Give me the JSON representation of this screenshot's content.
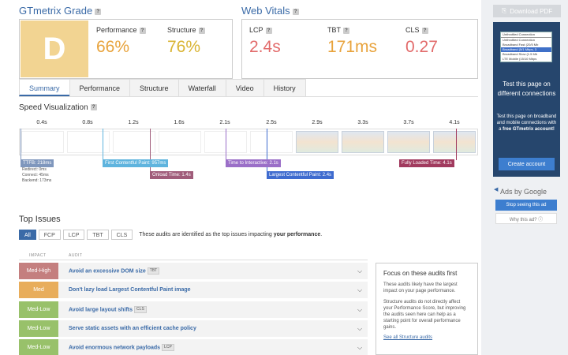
{
  "grade": {
    "title": "GTmetrix Grade",
    "letter": "D",
    "performance_label": "Performance",
    "performance_value": "66%",
    "structure_label": "Structure",
    "structure_value": "76%"
  },
  "vitals": {
    "title": "Web Vitals",
    "lcp_label": "LCP",
    "lcp_value": "2.4s",
    "tbt_label": "TBT",
    "tbt_value": "171ms",
    "cls_label": "CLS",
    "cls_value": "0.27"
  },
  "help_glyph": "?",
  "tabs": [
    "Summary",
    "Performance",
    "Structure",
    "Waterfall",
    "Video",
    "History"
  ],
  "speed": {
    "title": "Speed Visualization",
    "ticks": [
      "0.4s",
      "0.8s",
      "1.2s",
      "1.6s",
      "2.1s",
      "2.5s",
      "2.9s",
      "3.3s",
      "3.7s",
      "4.1s"
    ],
    "markers": {
      "ttfb": "TTFB: 218ms",
      "fcp": "First Contentful Paint: 957ms",
      "onload": "Onload Time: 1.4s",
      "tti": "Time to Interactive: 2.1s",
      "lcp": "Largest Contentful Paint: 2.4s",
      "flt": "Fully Loaded Time: 4.1s"
    },
    "ttfb_details": [
      "Redirect: 0ms",
      "Connect: 45ms",
      "Backend: 173ms"
    ]
  },
  "issues": {
    "title": "Top Issues",
    "filters": [
      "All",
      "FCP",
      "LCP",
      "TBT",
      "CLS"
    ],
    "note_prefix": "These audits are identified as the top issues impacting",
    "note_bold": "your performance",
    "note_suffix": ".",
    "col_impact": "IMPACT",
    "col_audit": "AUDIT",
    "rows": [
      {
        "impact": "Med-High",
        "color": "#c47f7f",
        "audit": "Avoid an excessive DOM size",
        "tag": "TBT"
      },
      {
        "impact": "Med",
        "color": "#e8ad5b",
        "audit": "Don't lazy load Largest Contentful Paint image",
        "tag": ""
      },
      {
        "impact": "Med-Low",
        "color": "#98c16a",
        "audit": "Avoid large layout shifts",
        "tag": "CLS"
      },
      {
        "impact": "Med-Low",
        "color": "#98c16a",
        "audit": "Serve static assets with an efficient cache policy",
        "tag": ""
      },
      {
        "impact": "Med-Low",
        "color": "#98c16a",
        "audit": "Avoid enormous network payloads",
        "tag": "LCP"
      }
    ]
  },
  "focus": {
    "title": "Focus on these audits first",
    "p1": "These audits likely have the largest impact on your page performance.",
    "p2": "Structure audits do not directly affect your Performance Score, but improving the audits seen here can help as a starting point for overall performance gains.",
    "link": "See all Structure audits"
  },
  "sidebar": {
    "pdf": "Download PDF",
    "connections": [
      "Unthrottled Connection",
      "Unthrottled Connection",
      "Broadband Fast (20/5 Mb",
      "Broadband (5/1 Mbps, 3",
      "Broadband Slow (1.5 Mb",
      "LTE Mobile (15/10 Mbps"
    ],
    "heading": "Test this page on different connections",
    "sub_prefix": "Test this page on broadband and mobile connections with a",
    "sub_bold": "free GTmetrix account!",
    "create": "Create account",
    "ads_by": "Ads by Google",
    "stop_ad": "Stop seeing this ad",
    "why_ad": "Why this ad? ⓘ"
  },
  "colors": {
    "accent": "#3a6aa7",
    "grade_bg": "#f2d492",
    "ttfb": "#7f97bd",
    "fcp": "#5fb4de",
    "onload": "#a05c7a",
    "tti": "#9b6fc8",
    "lcp": "#3e6bcf",
    "flt": "#a13a5e"
  }
}
